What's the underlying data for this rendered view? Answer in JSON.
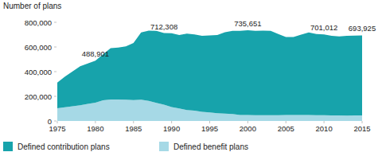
{
  "chart_data": {
    "type": "area",
    "stacked": true,
    "grid": false,
    "y_label": "Number of plans",
    "x": [
      1975,
      1976,
      1977,
      1978,
      1979,
      1980,
      1981,
      1982,
      1983,
      1984,
      1985,
      1986,
      1987,
      1988,
      1989,
      1990,
      1991,
      1992,
      1993,
      1994,
      1995,
      1996,
      1997,
      1998,
      1999,
      2000,
      2001,
      2002,
      2003,
      2004,
      2005,
      2006,
      2007,
      2008,
      2009,
      2010,
      2011,
      2012,
      2013,
      2014,
      2015
    ],
    "series": [
      {
        "name": "Defined contribution plans",
        "color": "#17a3ab",
        "values": [
          208000,
          248000,
          282000,
          315000,
          327000,
          340901,
          373000,
          415000,
          420000,
          433000,
          462000,
          545000,
          570000,
          584000,
          580308,
          599000,
          595000,
          619000,
          618000,
          616000,
          624000,
          633000,
          661000,
          674000,
          682000,
          687651,
          684000,
          686000,
          685000,
          658000,
          632000,
          632000,
          651000,
          670000,
          658000,
          655012,
          645000,
          640000,
          646000,
          647000,
          648925
        ]
      },
      {
        "name": "Defined benefit plans",
        "color": "#a6d9e6",
        "values": [
          103000,
          112000,
          120000,
          128000,
          139000,
          148000,
          167000,
          175000,
          175000,
          172000,
          170000,
          172000,
          163000,
          146000,
          132000,
          113000,
          102000,
          89000,
          84000,
          74000,
          69000,
          63000,
          59000,
          56000,
          49000,
          48000,
          47000,
          47000,
          46000,
          47000,
          48000,
          48000,
          49000,
          48000,
          47000,
          46000,
          45000,
          45000,
          44000,
          45000,
          45000
        ]
      }
    ],
    "annotations": [
      {
        "x": 1980,
        "value": 488901,
        "label": "488,901"
      },
      {
        "x": 1989,
        "value": 712308,
        "label": "712,308"
      },
      {
        "x": 2000,
        "value": 735651,
        "label": "735,651"
      },
      {
        "x": 2010,
        "value": 701012,
        "label": "701,012"
      },
      {
        "x": 2015,
        "value": 693925,
        "label": "693,925"
      }
    ],
    "xlim": [
      1975,
      2015
    ],
    "xticks": [
      1975,
      1980,
      1985,
      1990,
      1995,
      2000,
      2005,
      2010,
      2015
    ],
    "ylim": [
      0,
      800000
    ],
    "yticks": [
      0,
      {
        "value": 200000,
        "label": "200,000"
      },
      {
        "value": 400000,
        "label": "400,000"
      },
      {
        "value": 600000,
        "label": "600,000"
      },
      {
        "value": 800000,
        "label": "800,000"
      }
    ],
    "legend": "bottom"
  }
}
